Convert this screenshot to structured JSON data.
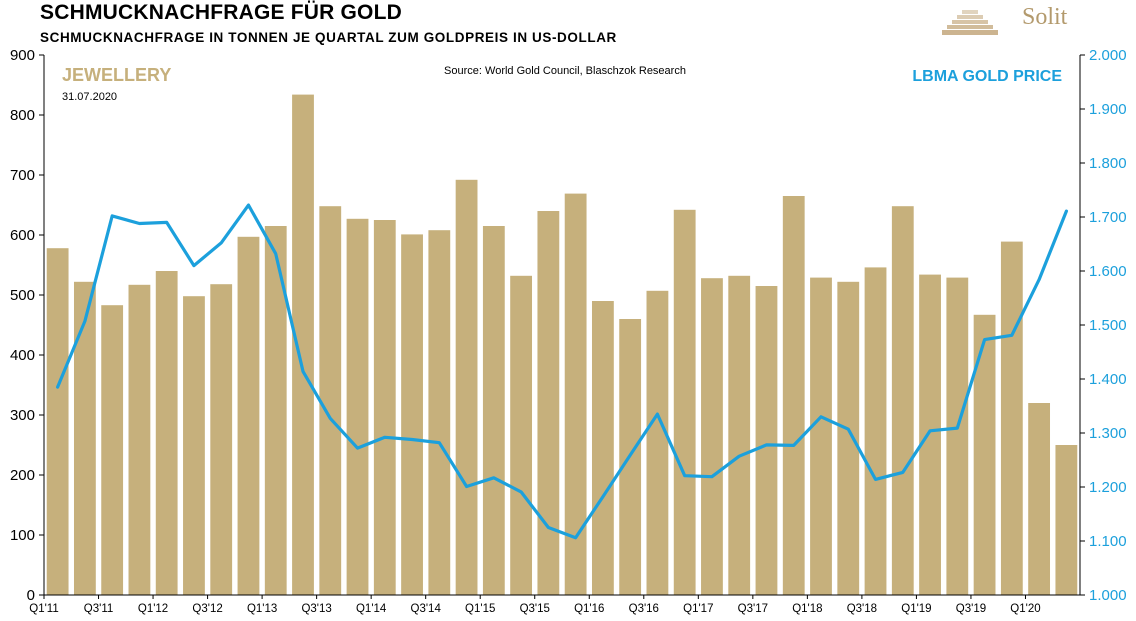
{
  "header": {
    "title": "SCHMUCKNACHFRAGE FÜR GOLD",
    "subtitle": "SCHMUCKNACHFRAGE IN TONNEN JE QUARTAL ZUM GOLDPREIS IN US-DOLLAR",
    "logo_text": "Solit"
  },
  "chart_data": {
    "type": "bar",
    "title": "SCHMUCKNACHFRAGE FÜR GOLD",
    "source": "Source: World Gold Council, Blaschzok Research",
    "date": "31.07.2020",
    "left_axis_label": "JEWELLERY",
    "right_axis_label": "LBMA GOLD PRICE",
    "ylim": [
      0,
      900
    ],
    "y2lim": [
      1000,
      2000
    ],
    "y_ticks": [
      "0",
      "100",
      "200",
      "300",
      "400",
      "500",
      "600",
      "700",
      "800",
      "900"
    ],
    "y2_ticks": [
      "1.000",
      "1.100",
      "1.200",
      "1.300",
      "1.400",
      "1.500",
      "1.600",
      "1.700",
      "1.800",
      "1.900",
      "2.000"
    ],
    "x_tick_labels": [
      "Q1'11",
      "Q3'11",
      "Q1'12",
      "Q3'12",
      "Q1'13",
      "Q3'13",
      "Q1'14",
      "Q3'14",
      "Q1'15",
      "Q3'15",
      "Q1'16",
      "Q3'16",
      "Q1'17",
      "Q3'17",
      "Q1'18",
      "Q3'18",
      "Q1'19",
      "Q3'19",
      "Q1'20"
    ],
    "categories": [
      "Q1'11",
      "Q2'11",
      "Q3'11",
      "Q4'11",
      "Q1'12",
      "Q2'12",
      "Q3'12",
      "Q4'12",
      "Q1'13",
      "Q2'13",
      "Q3'13",
      "Q4'13",
      "Q1'14",
      "Q2'14",
      "Q3'14",
      "Q4'14",
      "Q1'15",
      "Q2'15",
      "Q3'15",
      "Q4'15",
      "Q1'16",
      "Q2'16",
      "Q3'16",
      "Q4'16",
      "Q1'17",
      "Q2'17",
      "Q3'17",
      "Q4'17",
      "Q1'18",
      "Q2'18",
      "Q3'18",
      "Q4'18",
      "Q1'19",
      "Q2'19",
      "Q3'19",
      "Q4'19",
      "Q1'20",
      "Q2'20"
    ],
    "series": [
      {
        "name": "JEWELLERY",
        "type": "bar",
        "axis": "left",
        "color": "#c6b07c",
        "values": [
          578,
          522,
          483,
          517,
          540,
          498,
          518,
          597,
          615,
          834,
          648,
          627,
          625,
          601,
          608,
          692,
          615,
          532,
          640,
          669,
          490,
          460,
          507,
          642,
          528,
          532,
          515,
          665,
          529,
          522,
          546,
          648,
          534,
          529,
          467,
          589,
          320,
          250
        ]
      },
      {
        "name": "LBMA GOLD PRICE",
        "type": "line",
        "axis": "right",
        "color": "#1ca0dc",
        "values": [
          1385,
          1507,
          1702,
          1688,
          1690,
          1610,
          1652,
          1722,
          1632,
          1414,
          1327,
          1272,
          1292,
          1288,
          1282,
          1201,
          1217,
          1191,
          1125,
          1106,
          1182,
          1259,
          1335,
          1221,
          1219,
          1257,
          1278,
          1277,
          1330,
          1307,
          1214,
          1227,
          1304,
          1309,
          1473,
          1481,
          1584,
          1711
        ]
      }
    ]
  }
}
